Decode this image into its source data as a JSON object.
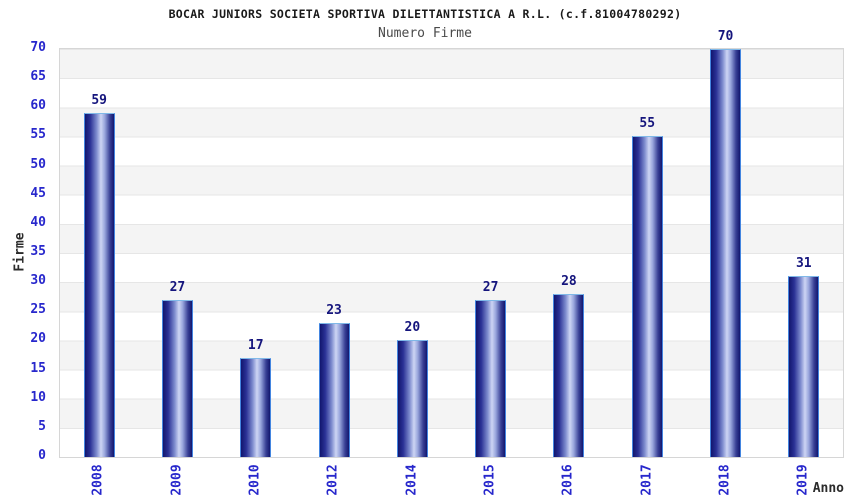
{
  "header": {
    "title": "BOCAR JUNIORS SOCIETA SPORTIVA DILETTANTISTICA A R.L. (c.f.81004780292)",
    "subtitle": "Numero Firme"
  },
  "chart_data": {
    "type": "bar",
    "title": "BOCAR JUNIORS SOCIETA SPORTIVA DILETTANTISTICA A R.L. (c.f.81004780292)",
    "subtitle": "Numero Firme",
    "categories": [
      "2008",
      "2009",
      "2010",
      "2012",
      "2014",
      "2015",
      "2016",
      "2017",
      "2018",
      "2019"
    ],
    "values": [
      59,
      27,
      17,
      23,
      20,
      27,
      28,
      55,
      70,
      31
    ],
    "xlabel": "Anno",
    "ylabel": "Firme",
    "ylim": [
      0,
      70
    ],
    "yticks": [
      0,
      5,
      10,
      15,
      20,
      25,
      30,
      35,
      40,
      45,
      50,
      55,
      60,
      65,
      70
    ],
    "grid": true,
    "band_fill": "alternating",
    "legend": "none",
    "bar_value_labels": true
  },
  "colors": {
    "tick_label_blue": "#2727cc",
    "value_label_navy": "#15157d",
    "bar_dark": "#12166e",
    "bar_light": "#cdd5f4",
    "bar_border": "#4385e0",
    "band_gray": "#f4f4f4",
    "gridline": "#e6e6e6",
    "plot_border": "#d6d6d6",
    "title_color": "#1a1a1a",
    "subtitle_color": "#4a4a4a"
  }
}
